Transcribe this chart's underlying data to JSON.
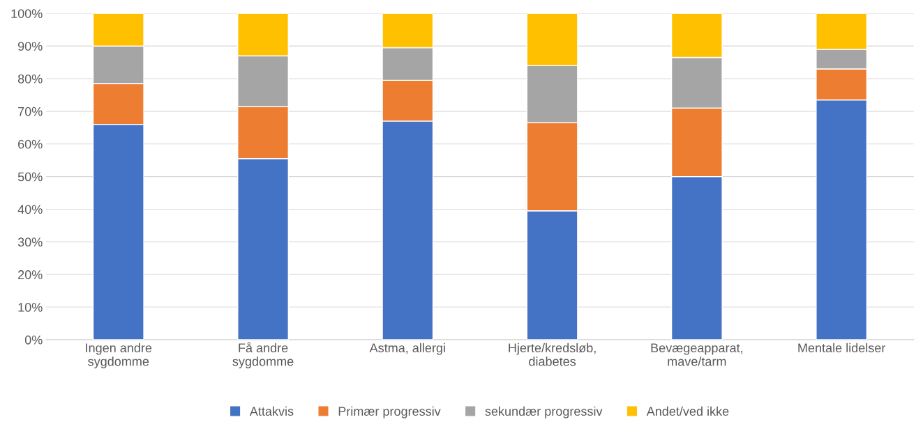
{
  "chart_data": {
    "type": "bar",
    "stacked": true,
    "categories": [
      "Ingen andre\nsygdomme",
      "Få andre\nsygdomme",
      "Astma, allergi",
      "Hjerte/kredsløb,\ndiabetes",
      "Bevægeapparat,\nmave/tarm",
      "Mentale lidelser"
    ],
    "series": [
      {
        "name": "Attakvis",
        "color": "#4472c4",
        "values": [
          66,
          55.5,
          67,
          39.5,
          50,
          73.5
        ]
      },
      {
        "name": "Primær progressiv",
        "color": "#ed7d31",
        "values": [
          12.5,
          16,
          12.5,
          27,
          21,
          9.5
        ]
      },
      {
        "name": "sekundær progressiv",
        "color": "#a5a5a5",
        "values": [
          11.5,
          15.5,
          10,
          17.5,
          15.5,
          6
        ]
      },
      {
        "name": "Andet/ved ikke",
        "color": "#ffc000",
        "values": [
          10,
          13,
          10.5,
          16,
          13.5,
          11
        ]
      }
    ],
    "ylim": [
      0,
      100
    ],
    "yticks": [
      {
        "value": 0,
        "label": "0%"
      },
      {
        "value": 10,
        "label": "10%"
      },
      {
        "value": 20,
        "label": "20%"
      },
      {
        "value": 30,
        "label": "30%"
      },
      {
        "value": 40,
        "label": "40%"
      },
      {
        "value": 50,
        "label": "50%"
      },
      {
        "value": 60,
        "label": "60%"
      },
      {
        "value": 70,
        "label": "70%"
      },
      {
        "value": 80,
        "label": "80%"
      },
      {
        "value": 90,
        "label": "90%"
      },
      {
        "value": 100,
        "label": "100%"
      }
    ],
    "grid": "y",
    "legend": "bottom"
  }
}
